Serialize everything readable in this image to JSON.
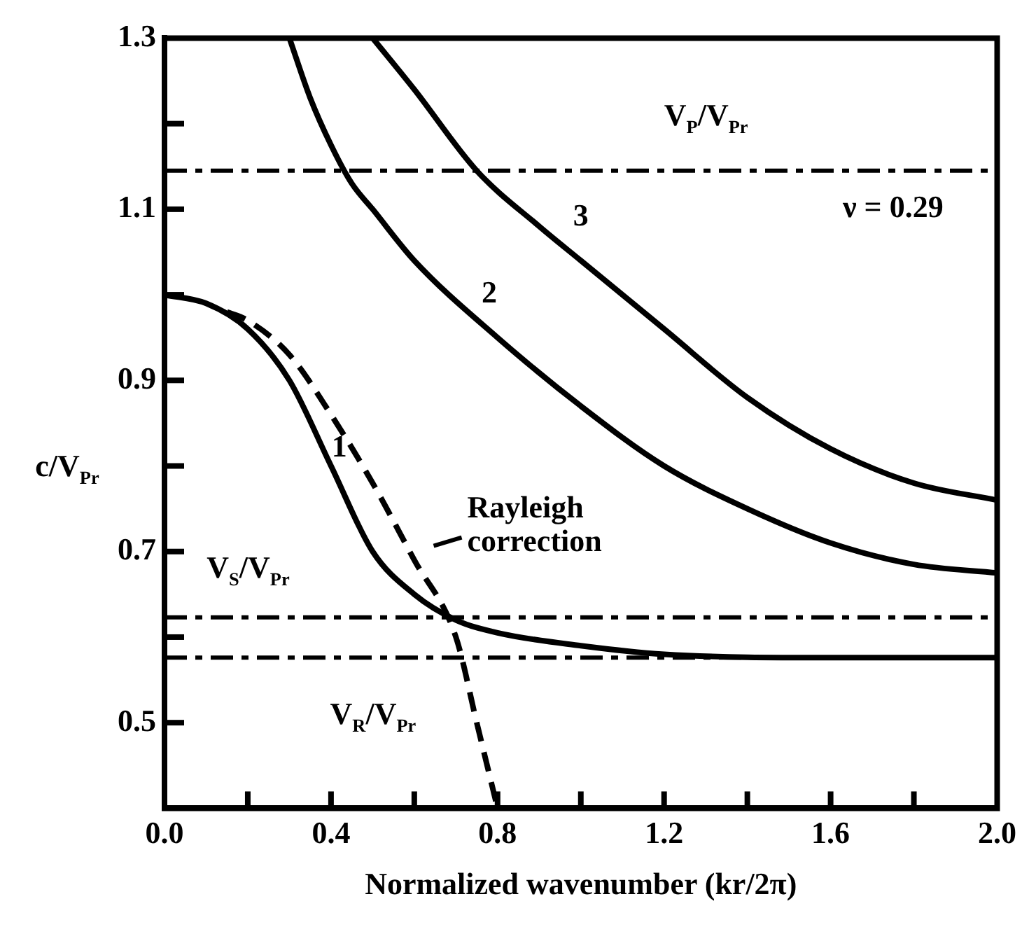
{
  "chart_data": {
    "type": "line",
    "xlabel": "Normalized wavenumber (kr/2π)",
    "ylabel": "c/V$_{Pr}$",
    "xlim": [
      0,
      2
    ],
    "ylim": [
      0.4,
      1.3
    ],
    "xticks": [
      {
        "value": 0,
        "label": "0.0"
      },
      {
        "value": 0.2,
        "label": null
      },
      {
        "value": 0.4,
        "label": "0.4"
      },
      {
        "value": 0.6,
        "label": null
      },
      {
        "value": 0.8,
        "label": "0.8"
      },
      {
        "value": 1,
        "label": null
      },
      {
        "value": 1.2,
        "label": "1.2"
      },
      {
        "value": 1.4,
        "label": null
      },
      {
        "value": 1.6,
        "label": "1.6"
      },
      {
        "value": 1.8,
        "label": null
      },
      {
        "value": 2,
        "label": "2.0"
      }
    ],
    "yticks": [
      {
        "value": 0.5,
        "label": "0.5"
      },
      {
        "value": 0.6,
        "label": null
      },
      {
        "value": 0.7,
        "label": "0.7"
      },
      {
        "value": 0.8,
        "label": null
      },
      {
        "value": 0.9,
        "label": "0.9"
      },
      {
        "value": 1,
        "label": null
      },
      {
        "value": 1.1,
        "label": "1.1"
      },
      {
        "value": 1.2,
        "label": null
      },
      {
        "value": 1.3,
        "label": "1.3"
      }
    ],
    "grid": false,
    "legend": false,
    "marker": "none",
    "series": [
      {
        "color": "#000000",
        "line_style": "solid",
        "x": [
          0,
          0.1,
          0.2,
          0.3,
          0.4,
          0.5,
          0.6,
          0.7,
          0.8,
          1.0,
          1.2,
          1.6,
          2.0
        ],
        "values": [
          1.0,
          0.99,
          0.96,
          0.9,
          0.8,
          0.7,
          0.65,
          0.62,
          0.605,
          0.59,
          0.58,
          0.576,
          0.576
        ]
      },
      {
        "color": "#000000",
        "line_style": "dashed",
        "x": [
          0.15,
          0.2,
          0.3,
          0.4,
          0.5,
          0.6,
          0.7,
          0.75,
          0.8
        ],
        "values": [
          0.98,
          0.97,
          0.93,
          0.86,
          0.78,
          0.69,
          0.6,
          0.5,
          0.4
        ]
      },
      {
        "color": "#000000",
        "line_style": "solid",
        "x": [
          0.3,
          0.35,
          0.4,
          0.45,
          0.5,
          0.6,
          0.8,
          1.0,
          1.2,
          1.4,
          1.6,
          1.8,
          2.0
        ],
        "values": [
          1.3,
          1.23,
          1.175,
          1.13,
          1.1,
          1.04,
          0.95,
          0.87,
          0.8,
          0.75,
          0.71,
          0.685,
          0.675
        ]
      },
      {
        "color": "#000000",
        "line_style": "solid",
        "x": [
          0.5,
          0.6,
          0.75,
          0.9,
          1.0,
          1.2,
          1.4,
          1.6,
          1.8,
          2.0
        ],
        "values": [
          1.3,
          1.24,
          1.145,
          1.08,
          1.04,
          0.96,
          0.88,
          0.82,
          0.78,
          0.76
        ]
      }
    ],
    "ref_lines": [
      {
        "axis": "y",
        "value": 1.145,
        "label": "V$_{P}$/V$_{Pr}$",
        "line_style": "dashed",
        "color": "#000000"
      },
      {
        "axis": "y",
        "value": 0.623,
        "label": "V$_{S}$/V$_{Pr}$",
        "line_style": "dashed",
        "color": "#000000"
      },
      {
        "axis": "y",
        "value": 0.576,
        "label": "V$_{R}$/V$_{Pr}$",
        "line_style": "dashed",
        "color": "#000000"
      }
    ],
    "annotations": [
      "1",
      "2",
      "3",
      "ν = 0.29",
      "Rayleigh\ncorrection"
    ]
  }
}
